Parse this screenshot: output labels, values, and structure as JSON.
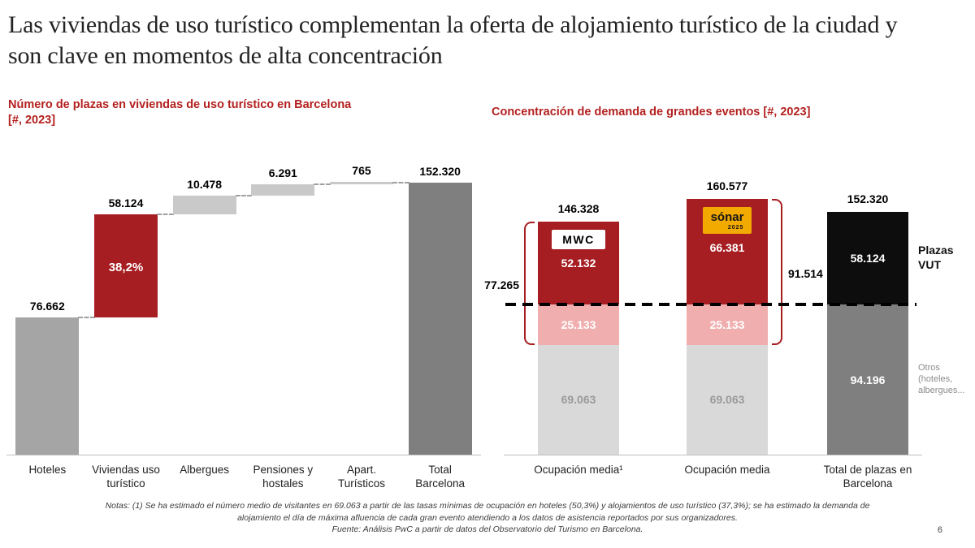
{
  "slide": {
    "title": "Las viviendas de uso turístico complementan la oferta de alojamiento turístico de la ciudad y son clave en momentos de alta concentración",
    "notes": "Notas: (1) Se ha estimado el número medio de visitantes en 69.063 a partir de las tasas mínimas de ocupación en hoteles (50,3%) y alojamientos de uso turístico (37,3%); se ha estimado la demanda de alojamiento el día de máxima afluencia de cada gran evento atendiendo a los datos de asistencia reportados por sus organizadores.",
    "source": "Fuente: Análisis PwC a partir de datos del Observatorio del Turismo en Barcelona.",
    "page_number": "6"
  },
  "colors": {
    "heading_red": "#b3201f",
    "bar_red": "#a61e22",
    "pink": "#f0aeae",
    "light_gray": "#d9d9d9",
    "float_gray": "#c9c9c9",
    "mid_gray": "#a5a5a5",
    "dark_gray": "#7f7f7f",
    "black": "#0d0d0d",
    "sonar_orange": "#f2a900"
  },
  "chart_data": [
    {
      "type": "bar",
      "subtype": "waterfall",
      "title": "Número de plazas en viviendas de uso turístico en Barcelona",
      "unit_label": "[#, 2023]",
      "ylim": [
        0,
        152320
      ],
      "total": 152320,
      "steps": [
        {
          "label": "Hoteles",
          "value": 76662,
          "display": "76.662",
          "kind": "base",
          "color": "#a5a5a5"
        },
        {
          "label": "Viviendas uso turístico",
          "value": 58124,
          "display": "58.124",
          "kind": "float",
          "color": "#a61e22",
          "inner_label": "38,2%"
        },
        {
          "label": "Albergues",
          "value": 10478,
          "display": "10.478",
          "kind": "float",
          "color": "#c9c9c9"
        },
        {
          "label": "Pensiones y hostales",
          "value": 6291,
          "display": "6.291",
          "kind": "float",
          "color": "#c9c9c9"
        },
        {
          "label": "Apart. Turísticos",
          "value": 765,
          "display": "765",
          "kind": "float",
          "color": "#c9c9c9"
        },
        {
          "label": "Total Barcelona",
          "value": 152320,
          "display": "152.320",
          "kind": "total",
          "color": "#7f7f7f"
        }
      ]
    },
    {
      "type": "bar",
      "subtype": "stacked",
      "title": "Concentración de demanda de grandes eventos [#, 2023]",
      "threshold": {
        "value": 94196
      },
      "bars": [
        {
          "label": "Ocupación media¹",
          "total": 146328,
          "total_display": "146.328",
          "bracket": {
            "side": "left",
            "label": "77.265",
            "start_segment": 1
          },
          "segments": [
            {
              "value": 69063,
              "display": "69.063",
              "color": "#d9d9d9",
              "text_color": "#9a9a9a"
            },
            {
              "value": 25133,
              "display": "25.133",
              "color": "#f0aeae",
              "text_color": "#ffffff"
            },
            {
              "value": 52132,
              "display": "52.132",
              "color": "#a61e22",
              "text_color": "#ffffff",
              "logo": {
                "type": "mwc",
                "text": "MWC"
              }
            }
          ]
        },
        {
          "label": "Ocupación media",
          "total": 160577,
          "total_display": "160.577",
          "bracket": {
            "side": "right",
            "label": "91.514",
            "start_segment": 1
          },
          "segments": [
            {
              "value": 69063,
              "display": "69.063",
              "color": "#d9d9d9",
              "text_color": "#9a9a9a"
            },
            {
              "value": 25133,
              "display": "25.133",
              "color": "#f0aeae",
              "text_color": "#ffffff"
            },
            {
              "value": 66381,
              "display": "66.381",
              "color": "#a61e22",
              "text_color": "#ffffff",
              "logo": {
                "type": "sonar",
                "text": "sónar",
                "sub": "2025"
              }
            }
          ]
        },
        {
          "label": "Total de plazas en Barcelona",
          "total": 152320,
          "total_display": "152.320",
          "segments": [
            {
              "value": 94196,
              "display": "94.196",
              "color": "#7f7f7f",
              "text_color": "#ffffff",
              "annotation": {
                "text": "Otros (hoteles, albergues...",
                "style": "muted"
              }
            },
            {
              "value": 58124,
              "display": "58.124",
              "color": "#0d0d0d",
              "text_color": "#ffffff",
              "annotation": {
                "text": "Plazas VUT",
                "style": "strong"
              }
            }
          ]
        }
      ]
    }
  ]
}
